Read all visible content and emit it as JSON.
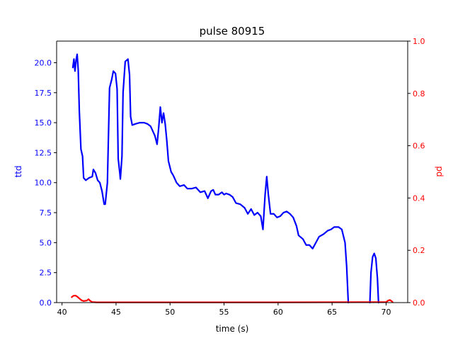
{
  "chart_data": {
    "type": "line",
    "title": "pulse 80915",
    "xlabel": "time (s)",
    "ylabel_left": "ttd",
    "ylabel_right": "pd",
    "xlim": [
      39.5,
      72.0
    ],
    "ylim_left": [
      0.0,
      21.8
    ],
    "ylim_right": [
      0.0,
      1.0
    ],
    "x_ticks": [
      40,
      45,
      50,
      55,
      60,
      65,
      70
    ],
    "x_tick_labels": [
      "40",
      "45",
      "50",
      "55",
      "60",
      "65",
      "70"
    ],
    "y_left_ticks": [
      0.0,
      2.5,
      5.0,
      7.5,
      10.0,
      12.5,
      15.0,
      17.5,
      20.0
    ],
    "y_left_tick_labels": [
      "0.0",
      "2.5",
      "5.0",
      "7.5",
      "10.0",
      "12.5",
      "15.0",
      "17.5",
      "20.0"
    ],
    "y_right_ticks": [
      0.0,
      0.2,
      0.4,
      0.6,
      0.8,
      1.0
    ],
    "y_right_tick_labels": [
      "0.0",
      "0.2",
      "0.4",
      "0.6",
      "0.8",
      "1.0"
    ],
    "colors": {
      "ttd": "#0000ff",
      "pd": "#ff0000",
      "axis": "#000000"
    },
    "series": [
      {
        "axis": "left",
        "color": "#0000ff",
        "points": [
          [
            41.0,
            19.6
          ],
          [
            41.1,
            20.3
          ],
          [
            41.2,
            19.3
          ],
          [
            41.3,
            20.2
          ],
          [
            41.4,
            20.7
          ],
          [
            41.5,
            19.4
          ],
          [
            41.6,
            16.0
          ],
          [
            41.75,
            12.8
          ],
          [
            41.9,
            12.2
          ],
          [
            42.0,
            10.4
          ],
          [
            42.2,
            10.2
          ],
          [
            42.5,
            10.4
          ],
          [
            42.8,
            10.5
          ],
          [
            42.9,
            11.1
          ],
          [
            43.1,
            10.8
          ],
          [
            43.3,
            10.2
          ],
          [
            43.5,
            10.0
          ],
          [
            43.7,
            9.3
          ],
          [
            43.9,
            8.2
          ],
          [
            44.0,
            8.2
          ],
          [
            44.2,
            10.0
          ],
          [
            44.4,
            17.9
          ],
          [
            44.6,
            18.6
          ],
          [
            44.75,
            19.3
          ],
          [
            44.95,
            19.1
          ],
          [
            45.1,
            17.8
          ],
          [
            45.2,
            12.0
          ],
          [
            45.35,
            10.8
          ],
          [
            45.4,
            10.3
          ],
          [
            45.55,
            12.2
          ],
          [
            45.65,
            17.5
          ],
          [
            45.85,
            20.1
          ],
          [
            46.1,
            20.3
          ],
          [
            46.25,
            19.0
          ],
          [
            46.35,
            15.5
          ],
          [
            46.5,
            14.8
          ],
          [
            46.8,
            14.9
          ],
          [
            47.2,
            15.0
          ],
          [
            47.6,
            15.0
          ],
          [
            47.9,
            14.9
          ],
          [
            48.2,
            14.7
          ],
          [
            48.6,
            13.9
          ],
          [
            48.8,
            13.2
          ],
          [
            48.95,
            14.6
          ],
          [
            49.1,
            16.3
          ],
          [
            49.25,
            15.0
          ],
          [
            49.4,
            15.8
          ],
          [
            49.55,
            14.9
          ],
          [
            49.7,
            13.5
          ],
          [
            49.85,
            11.8
          ],
          [
            50.1,
            10.9
          ],
          [
            50.3,
            10.6
          ],
          [
            50.6,
            10.0
          ],
          [
            50.9,
            9.7
          ],
          [
            51.3,
            9.8
          ],
          [
            51.6,
            9.5
          ],
          [
            52.0,
            9.5
          ],
          [
            52.4,
            9.6
          ],
          [
            52.8,
            9.2
          ],
          [
            53.2,
            9.3
          ],
          [
            53.5,
            8.7
          ],
          [
            53.8,
            9.3
          ],
          [
            54.0,
            9.4
          ],
          [
            54.2,
            9.0
          ],
          [
            54.5,
            9.0
          ],
          [
            54.8,
            9.2
          ],
          [
            55.0,
            9.0
          ],
          [
            55.2,
            9.1
          ],
          [
            55.5,
            9.0
          ],
          [
            55.8,
            8.8
          ],
          [
            56.1,
            8.3
          ],
          [
            56.5,
            8.2
          ],
          [
            56.9,
            7.9
          ],
          [
            57.2,
            7.4
          ],
          [
            57.5,
            7.8
          ],
          [
            57.8,
            7.3
          ],
          [
            58.1,
            7.5
          ],
          [
            58.4,
            7.2
          ],
          [
            58.6,
            6.1
          ],
          [
            58.8,
            9.0
          ],
          [
            58.95,
            10.5
          ],
          [
            59.1,
            9.0
          ],
          [
            59.3,
            7.4
          ],
          [
            59.6,
            7.4
          ],
          [
            59.9,
            7.1
          ],
          [
            60.2,
            7.2
          ],
          [
            60.5,
            7.5
          ],
          [
            60.8,
            7.6
          ],
          [
            61.1,
            7.4
          ],
          [
            61.4,
            7.1
          ],
          [
            61.7,
            6.4
          ],
          [
            61.9,
            5.6
          ],
          [
            62.3,
            5.3
          ],
          [
            62.6,
            4.8
          ],
          [
            62.9,
            4.8
          ],
          [
            63.2,
            4.5
          ],
          [
            63.5,
            5.0
          ],
          [
            63.8,
            5.5
          ],
          [
            64.2,
            5.7
          ],
          [
            64.6,
            6.0
          ],
          [
            64.9,
            6.1
          ],
          [
            65.2,
            6.3
          ],
          [
            65.6,
            6.3
          ],
          [
            65.9,
            6.1
          ],
          [
            66.2,
            5.0
          ],
          [
            66.35,
            3.0
          ],
          [
            66.5,
            0.0
          ]
        ]
      },
      {
        "axis": "left",
        "color": "#0000ff",
        "points": [
          [
            68.5,
            0.0
          ],
          [
            68.6,
            2.5
          ],
          [
            68.75,
            3.8
          ],
          [
            68.9,
            4.1
          ],
          [
            69.05,
            3.7
          ],
          [
            69.2,
            2.0
          ],
          [
            69.3,
            0.0
          ]
        ]
      },
      {
        "axis": "right",
        "color": "#ff0000",
        "points": [
          [
            40.9,
            0.021
          ],
          [
            41.05,
            0.026
          ],
          [
            41.25,
            0.027
          ],
          [
            41.4,
            0.023
          ],
          [
            41.6,
            0.016
          ],
          [
            41.8,
            0.009
          ],
          [
            42.0,
            0.006
          ],
          [
            42.3,
            0.008
          ],
          [
            42.45,
            0.013
          ],
          [
            42.6,
            0.007
          ],
          [
            42.8,
            0.002
          ],
          [
            43.2,
            0.001
          ],
          [
            50.0,
            0.001
          ],
          [
            60.0,
            0.001
          ],
          [
            70.0,
            0.002
          ],
          [
            70.2,
            0.008
          ],
          [
            70.35,
            0.01
          ],
          [
            70.5,
            0.006
          ],
          [
            70.6,
            0.002
          ]
        ]
      }
    ]
  }
}
